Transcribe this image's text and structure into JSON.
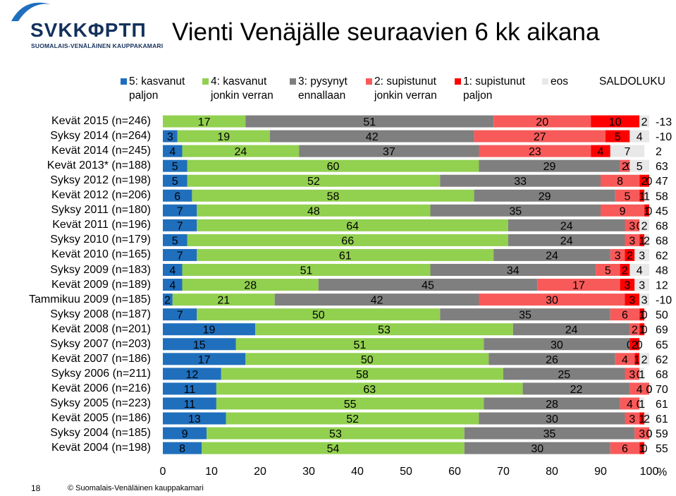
{
  "logo": {
    "text": "SVKKΦΡΤΠ",
    "subtitle": "SUOMALAIS-VENÄLÄINEN KAUPPAKAMARI"
  },
  "footer": {
    "page_number": "18",
    "copyright": "© Suomalais-Venäläinen kauppakamari"
  },
  "colors": {
    "s5": "#1f6fbd",
    "s4": "#92d050",
    "s3": "#7f7f7f",
    "s2": "#f85a5a",
    "s1": "#ff0000",
    "eos": "#e8e8e8",
    "brand": "#14315c"
  },
  "chart_data": {
    "type": "bar",
    "orientation": "horizontal",
    "stacked": true,
    "title": "Vienti Venäjälle seuraavien 6 kk aikana",
    "xlabel": "%",
    "xlim": [
      0,
      100
    ],
    "xticks": [
      0,
      10,
      20,
      30,
      40,
      50,
      60,
      70,
      80,
      90,
      100
    ],
    "legend_position": "top",
    "categories": [
      "Kevät 2015 (n=246)",
      "Syksy 2014 (n=264)",
      "Kevät 2014 (n=245)",
      "Kevät 2013* (n=188)",
      "Syksy 2012 (n=198)",
      "Kevät 2012 (n=206)",
      "Syksy 2011 (n=180)",
      "Kevät 2011 (n=196)",
      "Syksy 2010 (n=179)",
      "Kevät 2010 (n=165)",
      "Syksy 2009 (n=183)",
      "Kevät 2009 (n=189)",
      "Tammikuu 2009 (n=185)",
      "Syksy 2008 (n=187)",
      "Kevät 2008 (n=201)",
      "Syksy 2007 (n=203)",
      "Kevät 2007 (n=186)",
      "Syksy 2006 (n=211)",
      "Kevät 2006 (n=216)",
      "Syksy 2005 (n=223)",
      "Kevät 2005 (n=186)",
      "Syksy 2004 (n=185)",
      "Kevät 2004 (n=198)"
    ],
    "series": [
      {
        "name": "5: kasvanut paljon",
        "legend_lines": [
          "5: kasvanut",
          "paljon"
        ],
        "values": [
          0,
          3,
          4,
          5,
          5,
          6,
          7,
          7,
          5,
          7,
          4,
          4,
          2,
          7,
          19,
          15,
          17,
          12,
          11,
          11,
          13,
          9,
          8
        ]
      },
      {
        "name": "4: kasvanut jonkin verran",
        "legend_lines": [
          "4: kasvanut",
          "jonkin verran"
        ],
        "values": [
          17,
          19,
          24,
          60,
          52,
          58,
          48,
          64,
          66,
          61,
          51,
          28,
          21,
          50,
          53,
          51,
          50,
          58,
          63,
          55,
          52,
          53,
          54
        ]
      },
      {
        "name": "3: pysynyt ennallaan",
        "legend_lines": [
          "3: pysynyt",
          "ennallaan"
        ],
        "values": [
          51,
          42,
          37,
          29,
          33,
          29,
          35,
          24,
          24,
          24,
          34,
          45,
          42,
          35,
          24,
          30,
          26,
          25,
          22,
          28,
          30,
          35,
          30
        ]
      },
      {
        "name": "2: supistunut jonkin verran",
        "legend_lines": [
          "2: supistunut",
          "jonkin verran"
        ],
        "values": [
          20,
          27,
          23,
          2,
          8,
          5,
          9,
          3,
          3,
          3,
          5,
          17,
          30,
          6,
          2,
          0,
          4,
          3,
          4,
          4,
          3,
          3,
          6
        ]
      },
      {
        "name": "1: supistunut paljon",
        "legend_lines": [
          "1: supistunut",
          "paljon"
        ],
        "values": [
          10,
          5,
          4,
          0,
          2,
          1,
          1,
          0,
          1,
          2,
          2,
          3,
          3,
          1,
          1,
          2,
          1,
          0,
          0,
          0,
          1,
          0,
          1
        ]
      },
      {
        "name": "eos",
        "legend_lines": [
          "eos"
        ],
        "values": [
          2,
          4,
          7,
          5,
          0,
          1,
          0,
          2,
          2,
          3,
          4,
          3,
          3,
          0,
          0,
          0,
          2,
          1,
          0,
          1,
          2,
          0,
          0
        ]
      }
    ],
    "saldoluku": {
      "name": "SALDOLUKU",
      "values": [
        "-13",
        "-10",
        "2",
        "63",
        "47",
        "58",
        "45",
        "68",
        "68",
        "62",
        "48",
        "12",
        "-10",
        "50",
        "69",
        "65",
        "62",
        "68",
        "70",
        "61",
        "61",
        "59",
        "55"
      ]
    }
  }
}
